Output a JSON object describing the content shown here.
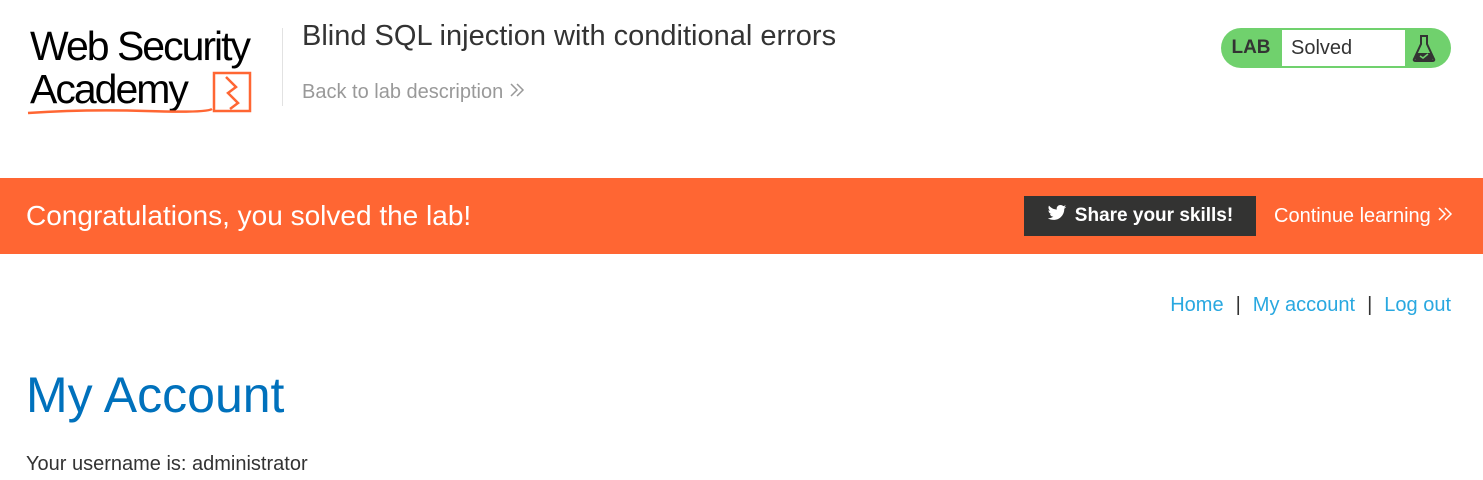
{
  "header": {
    "logo": {
      "line1": "Web Security",
      "line2": "Academy",
      "accent_color": "#ff6633"
    },
    "lab_title": "Blind SQL injection with conditional errors",
    "back_link": "Back to lab description",
    "back_link_icon": "double-chevron-right-icon",
    "lab_status": {
      "label": "LAB",
      "status": "Solved",
      "icon": "flask-icon",
      "color": "#70d16d"
    }
  },
  "banner": {
    "message": "Congratulations, you solved the lab!",
    "share_button": "Share your skills!",
    "share_icon": "twitter-icon",
    "continue_link": "Continue learning",
    "background": "#ff6633"
  },
  "nav": {
    "items": [
      {
        "label": "Home"
      },
      {
        "label": "My account"
      },
      {
        "label": "Log out"
      }
    ],
    "separator": "|",
    "link_color": "#29a8e0"
  },
  "main": {
    "title": "My Account",
    "username_text": "Your username is: administrator",
    "title_color": "#0071bc"
  }
}
